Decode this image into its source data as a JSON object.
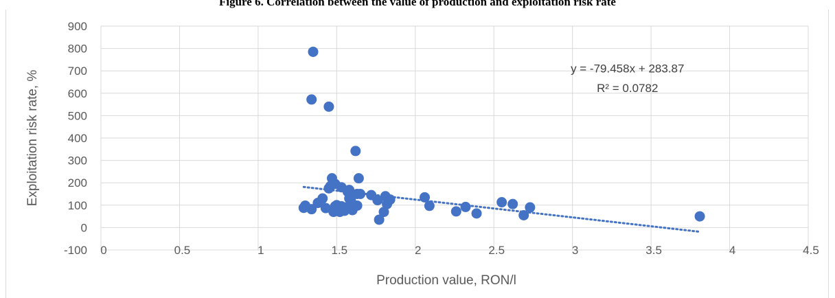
{
  "figure_title": "Figure 6. Correlation between the value of production and exploitation risk rate",
  "chart_data": {
    "type": "scatter",
    "title": "Figure 6. Correlation between the value of production and exploitation risk rate",
    "xlabel": "Production value, RON/l",
    "ylabel": "Exploitation risk rate, %",
    "xlim": [
      0,
      4.5
    ],
    "ylim": [
      -100,
      900
    ],
    "x_ticks": [
      "0",
      "0.5",
      "1",
      "1.5",
      "2",
      "2.5",
      "3",
      "3.5",
      "4",
      "4.5"
    ],
    "y_ticks": [
      "-100",
      "0",
      "100",
      "200",
      "300",
      "400",
      "500",
      "600",
      "700",
      "800",
      "900"
    ],
    "grid": true,
    "legend": "none",
    "point_color": "#4472c4",
    "trendline_color": "#4472c4",
    "trendline": {
      "type": "linear",
      "slope": -79.458,
      "intercept": 283.87,
      "x_range": [
        1.29,
        3.8
      ],
      "equation": "y = -79.458x + 283.87",
      "r_squared": "R² = 0.0782"
    },
    "points": [
      [
        1.29,
        88
      ],
      [
        1.3,
        98
      ],
      [
        1.34,
        82
      ],
      [
        1.34,
        572
      ],
      [
        1.35,
        785
      ],
      [
        1.38,
        110
      ],
      [
        1.41,
        130
      ],
      [
        1.43,
        87
      ],
      [
        1.45,
        540
      ],
      [
        1.45,
        175
      ],
      [
        1.46,
        185
      ],
      [
        1.47,
        220
      ],
      [
        1.48,
        70
      ],
      [
        1.49,
        95
      ],
      [
        1.49,
        195
      ],
      [
        1.5,
        100
      ],
      [
        1.51,
        88
      ],
      [
        1.52,
        70
      ],
      [
        1.53,
        180
      ],
      [
        1.53,
        95
      ],
      [
        1.55,
        75
      ],
      [
        1.56,
        90
      ],
      [
        1.57,
        160
      ],
      [
        1.58,
        168
      ],
      [
        1.58,
        130
      ],
      [
        1.59,
        120
      ],
      [
        1.6,
        78
      ],
      [
        1.61,
        100
      ],
      [
        1.62,
        342
      ],
      [
        1.63,
        98
      ],
      [
        1.63,
        150
      ],
      [
        1.64,
        220
      ],
      [
        1.65,
        150
      ],
      [
        1.72,
        145
      ],
      [
        1.76,
        122
      ],
      [
        1.77,
        35
      ],
      [
        1.8,
        70
      ],
      [
        1.81,
        140
      ],
      [
        1.82,
        105
      ],
      [
        1.84,
        125
      ],
      [
        2.06,
        135
      ],
      [
        2.09,
        97
      ],
      [
        2.26,
        72
      ],
      [
        2.32,
        92
      ],
      [
        2.39,
        63
      ],
      [
        2.55,
        113
      ],
      [
        2.62,
        105
      ],
      [
        2.69,
        55
      ],
      [
        2.73,
        90
      ],
      [
        3.81,
        50
      ]
    ]
  }
}
